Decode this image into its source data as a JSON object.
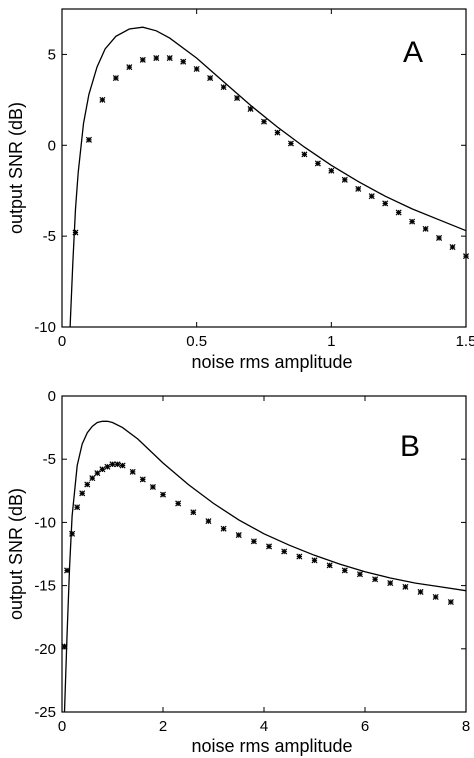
{
  "chart_data": [
    {
      "type": "line",
      "panel": "A",
      "xlabel": "noise rms amplitude",
      "ylabel": "output SNR (dB)",
      "xlim": [
        0,
        1.5
      ],
      "ylim": [
        -10,
        7.5
      ],
      "xticks": [
        0,
        0.5,
        1,
        1.5
      ],
      "xtick_labels": [
        "0",
        "0.5",
        "1",
        "1.5"
      ],
      "yticks": [
        -10,
        -5,
        0,
        5
      ],
      "ytick_labels": [
        "-10",
        "-5",
        "0",
        "5"
      ],
      "grid": false,
      "series": [
        {
          "style": "line",
          "x": [
            0.03,
            0.04,
            0.05,
            0.06,
            0.08,
            0.1,
            0.13,
            0.16,
            0.2,
            0.25,
            0.3,
            0.35,
            0.4,
            0.5,
            0.6,
            0.7,
            0.8,
            0.9,
            1.0,
            1.1,
            1.2,
            1.3,
            1.4,
            1.5
          ],
          "y": [
            -10,
            -6.5,
            -3.5,
            -1.5,
            1.2,
            2.8,
            4.3,
            5.3,
            6.0,
            6.4,
            6.5,
            6.3,
            5.9,
            4.8,
            3.5,
            2.2,
            1.0,
            -0.1,
            -1.1,
            -2.0,
            -2.8,
            -3.5,
            -4.1,
            -4.7
          ]
        },
        {
          "style": "markers",
          "x": [
            0.05,
            0.1,
            0.15,
            0.2,
            0.25,
            0.3,
            0.35,
            0.4,
            0.45,
            0.5,
            0.55,
            0.6,
            0.65,
            0.7,
            0.75,
            0.8,
            0.85,
            0.9,
            0.95,
            1.0,
            1.05,
            1.1,
            1.15,
            1.2,
            1.25,
            1.3,
            1.35,
            1.4,
            1.45,
            1.5
          ],
          "y": [
            -4.8,
            0.3,
            2.5,
            3.7,
            4.3,
            4.7,
            4.8,
            4.8,
            4.6,
            4.2,
            3.7,
            3.2,
            2.6,
            2.0,
            1.3,
            0.7,
            0.1,
            -0.5,
            -1.0,
            -1.4,
            -1.9,
            -2.4,
            -2.8,
            -3.2,
            -3.7,
            -4.2,
            -4.6,
            -5.1,
            -5.6,
            -6.1
          ]
        }
      ]
    },
    {
      "type": "line",
      "panel": "B",
      "xlabel": "noise rms amplitude",
      "ylabel": "output SNR (dB)",
      "xlim": [
        0,
        8
      ],
      "ylim": [
        -25,
        0
      ],
      "xticks": [
        0,
        2,
        4,
        6,
        8
      ],
      "xtick_labels": [
        "0",
        "2",
        "4",
        "6",
        "8"
      ],
      "yticks": [
        -25,
        -20,
        -15,
        -10,
        -5,
        0
      ],
      "ytick_labels": [
        "-25",
        "-20",
        "-15",
        "-10",
        "-5",
        "0"
      ],
      "grid": false,
      "series": [
        {
          "style": "line",
          "x": [
            0.05,
            0.1,
            0.15,
            0.2,
            0.3,
            0.4,
            0.5,
            0.6,
            0.7,
            0.8,
            0.9,
            1.0,
            1.2,
            1.5,
            2.0,
            2.5,
            3.0,
            3.5,
            4.0,
            4.5,
            5.0,
            5.5,
            6.0,
            6.5,
            7.0,
            7.5,
            8.0
          ],
          "y": [
            -25,
            -19.0,
            -13.5,
            -9.5,
            -5.5,
            -3.8,
            -2.9,
            -2.4,
            -2.1,
            -2.0,
            -2.0,
            -2.1,
            -2.5,
            -3.4,
            -5.3,
            -7.0,
            -8.5,
            -9.8,
            -10.9,
            -11.8,
            -12.6,
            -13.3,
            -13.9,
            -14.4,
            -14.8,
            -15.1,
            -15.4
          ]
        },
        {
          "style": "markers",
          "x": [
            0.05,
            0.1,
            0.2,
            0.3,
            0.4,
            0.5,
            0.6,
            0.7,
            0.8,
            0.9,
            1.0,
            1.1,
            1.2,
            1.4,
            1.6,
            1.8,
            2.0,
            2.3,
            2.6,
            2.9,
            3.2,
            3.5,
            3.8,
            4.1,
            4.4,
            4.7,
            5.0,
            5.3,
            5.6,
            5.9,
            6.2,
            6.5,
            6.8,
            7.1,
            7.4,
            7.7
          ],
          "y": [
            -19.8,
            -13.8,
            -10.9,
            -8.8,
            -7.7,
            -7.0,
            -6.5,
            -6.1,
            -5.8,
            -5.6,
            -5.4,
            -5.4,
            -5.5,
            -6.0,
            -6.6,
            -7.2,
            -7.8,
            -8.5,
            -9.2,
            -9.9,
            -10.5,
            -11.0,
            -11.5,
            -11.9,
            -12.3,
            -12.7,
            -13.0,
            -13.4,
            -13.8,
            -14.1,
            -14.5,
            -14.8,
            -15.1,
            -15.5,
            -15.9,
            -16.3
          ]
        }
      ]
    }
  ]
}
